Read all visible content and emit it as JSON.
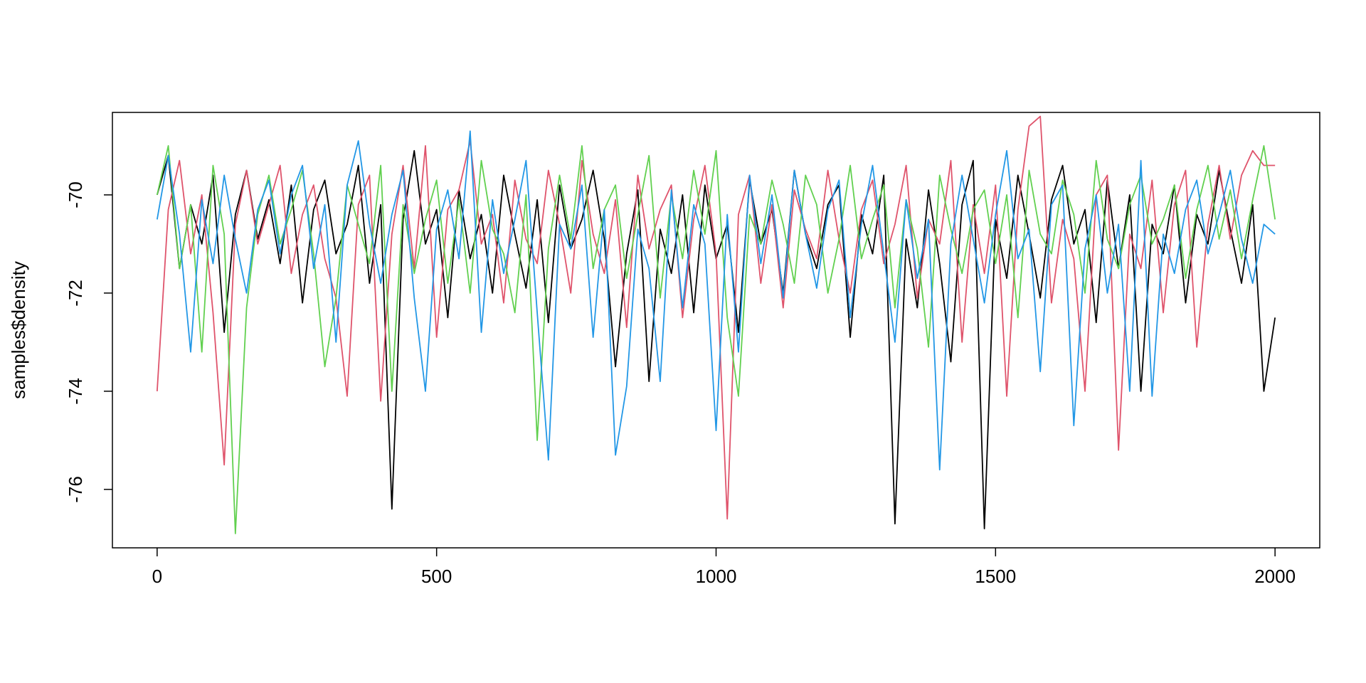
{
  "chart_data": {
    "type": "line",
    "y_label": "samples$density",
    "x": [
      0,
      20,
      40,
      60,
      80,
      100,
      120,
      140,
      160,
      180,
      200,
      220,
      240,
      260,
      280,
      300,
      320,
      340,
      360,
      380,
      400,
      420,
      440,
      460,
      480,
      500,
      520,
      540,
      560,
      580,
      600,
      620,
      640,
      660,
      680,
      700,
      720,
      740,
      760,
      780,
      800,
      820,
      840,
      860,
      880,
      900,
      920,
      940,
      960,
      980,
      1000,
      1020,
      1040,
      1060,
      1080,
      1100,
      1120,
      1140,
      1160,
      1180,
      1200,
      1220,
      1240,
      1260,
      1280,
      1300,
      1320,
      1340,
      1360,
      1380,
      1400,
      1420,
      1440,
      1460,
      1480,
      1500,
      1520,
      1540,
      1560,
      1580,
      1600,
      1620,
      1640,
      1660,
      1680,
      1700,
      1720,
      1740,
      1760,
      1780,
      1800,
      1820,
      1840,
      1860,
      1880,
      1900,
      1920,
      1940,
      1960,
      1980,
      2000
    ],
    "series": [
      {
        "color": "#000000",
        "values": [
          -70.0,
          -69.2,
          -71.5,
          -70.2,
          -71.0,
          -69.6,
          -72.8,
          -70.4,
          -69.5,
          -70.9,
          -70.1,
          -71.4,
          -69.8,
          -72.2,
          -70.3,
          -69.7,
          -71.2,
          -70.6,
          -69.4,
          -71.8,
          -70.2,
          -76.4,
          -70.5,
          -69.1,
          -71.0,
          -70.3,
          -72.5,
          -69.9,
          -71.3,
          -70.4,
          -72.0,
          -69.6,
          -70.8,
          -71.9,
          -70.1,
          -72.6,
          -69.8,
          -71.1,
          -70.5,
          -69.5,
          -70.9,
          -73.5,
          -71.2,
          -69.9,
          -73.8,
          -70.7,
          -71.6,
          -70.0,
          -72.4,
          -69.8,
          -71.3,
          -70.6,
          -72.8,
          -69.7,
          -71.0,
          -70.3,
          -72.0,
          -69.5,
          -70.8,
          -71.5,
          -70.2,
          -69.8,
          -72.9,
          -70.4,
          -71.2,
          -69.6,
          -76.7,
          -70.9,
          -72.3,
          -69.9,
          -71.4,
          -73.4,
          -70.2,
          -69.3,
          -76.8,
          -70.5,
          -71.7,
          -69.6,
          -70.8,
          -72.1,
          -70.1,
          -69.4,
          -71.0,
          -70.3,
          -72.6,
          -69.7,
          -71.5,
          -70.0,
          -74.0,
          -70.6,
          -71.2,
          -69.8,
          -72.2,
          -70.4,
          -71.0,
          -69.5,
          -70.7,
          -71.8,
          -70.2,
          -74.0,
          -72.5
        ]
      },
      {
        "color": "#DF536B",
        "values": [
          -74.0,
          -70.3,
          -69.3,
          -71.2,
          -70.0,
          -72.4,
          -75.5,
          -70.6,
          -69.5,
          -71.0,
          -70.2,
          -69.4,
          -71.6,
          -70.4,
          -69.8,
          -71.3,
          -72.1,
          -74.1,
          -70.2,
          -69.6,
          -74.2,
          -70.8,
          -69.4,
          -71.5,
          -69.0,
          -72.9,
          -70.3,
          -69.9,
          -68.9,
          -71.0,
          -70.4,
          -72.2,
          -69.7,
          -70.9,
          -71.4,
          -69.5,
          -70.6,
          -72.0,
          -69.3,
          -70.8,
          -71.6,
          -70.1,
          -72.7,
          -69.6,
          -71.1,
          -70.3,
          -69.8,
          -72.5,
          -70.5,
          -69.4,
          -71.2,
          -76.6,
          -70.4,
          -69.6,
          -71.8,
          -70.2,
          -72.3,
          -69.9,
          -70.7,
          -71.3,
          -69.5,
          -70.9,
          -72.0,
          -70.3,
          -69.7,
          -71.4,
          -70.6,
          -69.4,
          -72.1,
          -70.5,
          -71.0,
          -69.3,
          -73.0,
          -70.2,
          -71.6,
          -69.8,
          -74.1,
          -70.3,
          -68.6,
          -68.4,
          -72.2,
          -70.5,
          -71.3,
          -74.0,
          -70.0,
          -69.6,
          -75.2,
          -70.8,
          -71.5,
          -69.7,
          -72.4,
          -70.2,
          -69.5,
          -73.1,
          -70.6,
          -69.4,
          -70.9,
          -69.6,
          -69.1,
          -69.4,
          -69.4
        ]
      },
      {
        "color": "#61D04F",
        "values": [
          -70.0,
          -69.0,
          -71.5,
          -70.2,
          -73.2,
          -69.4,
          -70.8,
          -76.9,
          -72.3,
          -70.4,
          -69.6,
          -71.0,
          -70.3,
          -69.5,
          -71.2,
          -73.5,
          -72.1,
          -69.8,
          -70.6,
          -71.4,
          -69.4,
          -74.0,
          -70.2,
          -71.6,
          -70.5,
          -69.7,
          -71.8,
          -70.1,
          -72.0,
          -69.3,
          -70.7,
          -71.2,
          -72.4,
          -70.0,
          -75.0,
          -71.1,
          -69.6,
          -70.9,
          -69.0,
          -71.5,
          -70.3,
          -69.8,
          -71.7,
          -70.4,
          -69.2,
          -72.1,
          -70.0,
          -71.3,
          -69.5,
          -70.8,
          -69.1,
          -72.5,
          -74.1,
          -70.4,
          -71.0,
          -69.7,
          -70.6,
          -71.8,
          -69.6,
          -70.2,
          -72.0,
          -70.9,
          -69.4,
          -71.3,
          -70.5,
          -69.8,
          -72.3,
          -70.1,
          -71.1,
          -73.1,
          -69.6,
          -70.7,
          -71.6,
          -70.3,
          -69.9,
          -71.4,
          -70.0,
          -72.5,
          -69.5,
          -70.8,
          -71.2,
          -69.7,
          -70.4,
          -72.0,
          -69.3,
          -70.9,
          -71.5,
          -70.2,
          -69.6,
          -71.0,
          -70.5,
          -69.8,
          -71.7,
          -70.3,
          -69.4,
          -70.9,
          -69.9,
          -71.3,
          -70.1,
          -69.0,
          -70.5
        ]
      },
      {
        "color": "#2297E6",
        "values": [
          -70.5,
          -69.2,
          -70.8,
          -73.2,
          -70.1,
          -71.4,
          -69.6,
          -70.9,
          -72.0,
          -70.3,
          -69.7,
          -71.2,
          -70.0,
          -69.4,
          -71.5,
          -70.2,
          -73.0,
          -69.8,
          -68.9,
          -70.6,
          -71.8,
          -70.4,
          -69.5,
          -72.1,
          -74.0,
          -70.7,
          -69.9,
          -71.3,
          -68.7,
          -72.8,
          -70.1,
          -71.6,
          -70.5,
          -69.3,
          -72.4,
          -75.4,
          -70.6,
          -71.1,
          -69.8,
          -72.9,
          -70.3,
          -75.3,
          -73.9,
          -70.7,
          -71.5,
          -73.8,
          -69.9,
          -72.3,
          -70.2,
          -71.0,
          -74.8,
          -70.4,
          -73.2,
          -69.6,
          -71.4,
          -70.0,
          -72.1,
          -69.5,
          -70.8,
          -71.9,
          -70.3,
          -69.7,
          -72.5,
          -70.6,
          -69.4,
          -71.2,
          -73.0,
          -70.1,
          -71.7,
          -70.5,
          -75.6,
          -71.0,
          -69.6,
          -70.9,
          -72.2,
          -70.4,
          -69.1,
          -71.3,
          -70.7,
          -73.6,
          -70.2,
          -69.8,
          -74.7,
          -71.1,
          -70.0,
          -72.0,
          -70.6,
          -74.0,
          -69.3,
          -74.1,
          -70.8,
          -71.6,
          -70.3,
          -69.7,
          -71.2,
          -70.4,
          -69.5,
          -70.9,
          -71.8,
          -70.6,
          -70.8
        ]
      }
    ],
    "xlim": [
      -80,
      2080
    ],
    "ylim": [
      -77.19,
      -68.32
    ],
    "xticks": [
      0,
      500,
      1000,
      1500,
      2000
    ],
    "yticks": [
      -76,
      -74,
      -72,
      -70
    ]
  }
}
